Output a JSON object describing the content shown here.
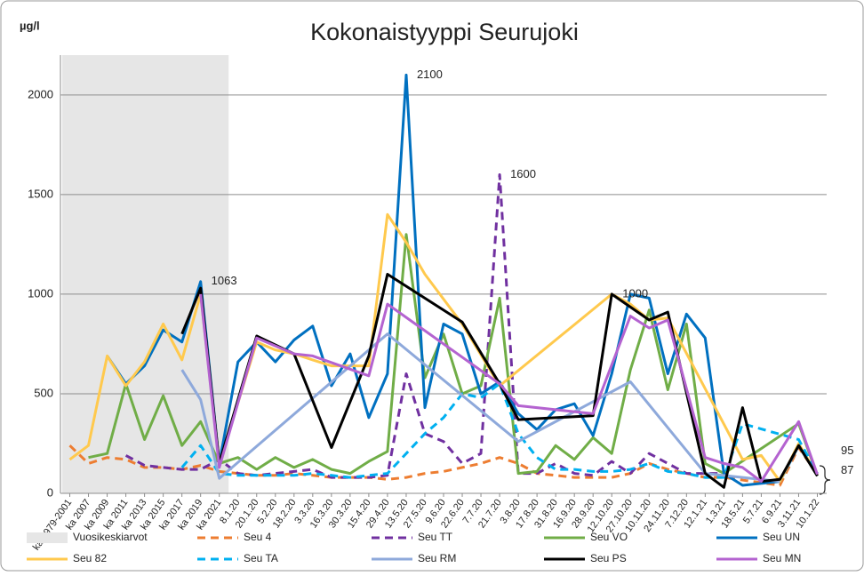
{
  "chart_data": {
    "type": "line",
    "title": "Kokonaistyyppi Seurujoki",
    "y_label": "µg/l",
    "categories": [
      "ka 1979-2001",
      "ka 2007",
      "ka 2009",
      "ka 2011",
      "ka 2013",
      "ka 2015",
      "ka 2017",
      "ka 2019",
      "ka 2021",
      "8.1.20",
      "20.1.20",
      "5.2.20",
      "18.2.20",
      "3.3.20",
      "16.3.20",
      "30.3.20",
      "15.4.20",
      "29.4.20",
      "13.5.20",
      "27.5.20",
      "9.6.20",
      "22.6.20",
      "7.7.20",
      "21.7.20",
      "3.8.20",
      "17.8.20",
      "31.8.20",
      "16.9.20",
      "28.9.20",
      "12.10.20",
      "27.10.20",
      "10.11.20",
      "24.11.20",
      "7.12.20",
      "12.1.21",
      "1.3.21",
      "18.5.21",
      "5.7.21",
      "6.9.21",
      "3.11.21",
      "10.1.22"
    ],
    "ylim": [
      0,
      2200
    ],
    "yticks": [
      0,
      500,
      1000,
      1500,
      2000
    ],
    "grid": true,
    "span_gaps": true,
    "legend": "bottom",
    "shaded_region": {
      "name": "Vuosikeskiarvot",
      "color": "#e6e6e6",
      "from": "ka 1979-2001",
      "to": "ka 2021"
    },
    "series": [
      {
        "name": "Seu 4",
        "color": "#ed7d31",
        "dashed": true,
        "values": [
          240,
          150,
          180,
          170,
          130,
          130,
          120,
          140,
          110,
          100,
          90,
          90,
          100,
          90,
          80,
          80,
          80,
          70,
          80,
          100,
          110,
          130,
          150,
          180,
          150,
          100,
          90,
          80,
          80,
          80,
          100,
          150,
          120,
          100,
          80,
          80,
          null,
          null,
          40,
          230,
          95
        ]
      },
      {
        "name": "Seu TT",
        "color": "#7030a0",
        "dashed": true,
        "values": [
          null,
          null,
          null,
          190,
          140,
          130,
          120,
          120,
          170,
          100,
          90,
          100,
          110,
          120,
          80,
          80,
          80,
          90,
          600,
          300,
          260,
          150,
          200,
          1600,
          100,
          100,
          150,
          100,
          90,
          160,
          100,
          200,
          150,
          100,
          100,
          100,
          null,
          null,
          null,
          null,
          null
        ]
      },
      {
        "name": "Seu VO",
        "color": "#70ad47",
        "dashed": false,
        "values": [
          null,
          180,
          200,
          550,
          270,
          490,
          240,
          360,
          150,
          180,
          120,
          180,
          130,
          170,
          120,
          100,
          160,
          210,
          1300,
          580,
          800,
          500,
          540,
          980,
          100,
          110,
          240,
          170,
          280,
          200,
          620,
          920,
          520,
          850,
          150,
          100,
          null,
          null,
          null,
          350,
          90
        ]
      },
      {
        "name": "Seu UN",
        "color": "#0070c0",
        "dashed": false,
        "values": [
          null,
          null,
          690,
          550,
          640,
          820,
          760,
          1063,
          150,
          660,
          760,
          660,
          770,
          840,
          540,
          700,
          380,
          600,
          2100,
          430,
          850,
          800,
          500,
          560,
          400,
          320,
          420,
          450,
          290,
          600,
          1000,
          980,
          600,
          900,
          780,
          100,
          40,
          null,
          60,
          240,
          90
        ]
      },
      {
        "name": "Seu 82",
        "color": "#ffc94d",
        "dashed": false,
        "values": [
          170,
          240,
          690,
          540,
          660,
          850,
          670,
          1000,
          150,
          null,
          760,
          720,
          700,
          670,
          640,
          640,
          640,
          1400,
          1260,
          1100,
          null,
          850,
          null,
          540,
          null,
          null,
          null,
          null,
          null,
          1000,
          950,
          870,
          880,
          null,
          null,
          null,
          170,
          190,
          60,
          250,
          90
        ]
      },
      {
        "name": "Seu TA",
        "color": "#00b0f0",
        "dashed": true,
        "values": [
          null,
          null,
          null,
          null,
          null,
          null,
          130,
          240,
          100,
          90,
          90,
          90,
          90,
          100,
          90,
          80,
          90,
          100,
          200,
          300,
          380,
          500,
          480,
          550,
          300,
          180,
          120,
          120,
          110,
          110,
          120,
          150,
          110,
          100,
          80,
          80,
          350,
          null,
          null,
          270,
          100
        ]
      },
      {
        "name": "Seu RM",
        "color": "#8ea9db",
        "dashed": false,
        "values": [
          null,
          null,
          null,
          null,
          null,
          null,
          620,
          470,
          75,
          null,
          null,
          null,
          null,
          null,
          null,
          null,
          null,
          800,
          null,
          null,
          null,
          null,
          null,
          null,
          260,
          null,
          null,
          null,
          null,
          null,
          560,
          null,
          null,
          null,
          100,
          null,
          null,
          null,
          60,
          null,
          null
        ]
      },
      {
        "name": "Seu PS",
        "color": "#000000",
        "dashed": false,
        "values": [
          null,
          null,
          null,
          null,
          null,
          null,
          800,
          1030,
          150,
          null,
          790,
          null,
          700,
          null,
          230,
          null,
          690,
          1100,
          null,
          null,
          null,
          860,
          null,
          550,
          370,
          null,
          null,
          null,
          390,
          1000,
          null,
          870,
          910,
          null,
          100,
          30,
          430,
          60,
          70,
          240,
          87
        ]
      },
      {
        "name": "Seu MN",
        "color": "#b463d0",
        "dashed": false,
        "values": [
          null,
          null,
          null,
          null,
          null,
          null,
          null,
          1000,
          130,
          null,
          780,
          null,
          700,
          690,
          null,
          null,
          590,
          950,
          null,
          null,
          null,
          null,
          null,
          550,
          440,
          null,
          null,
          null,
          400,
          null,
          890,
          830,
          870,
          null,
          180,
          150,
          130,
          60,
          null,
          360,
          95
        ]
      }
    ],
    "annotations": [
      {
        "text": "2100",
        "x": "13.5.20",
        "y": 2100
      },
      {
        "text": "1600",
        "x": "21.7.20",
        "y": 1600
      },
      {
        "text": "1063",
        "x": "ka 2019",
        "y": 1063
      },
      {
        "text": "1000",
        "x": "12.10.20",
        "y": 1000
      },
      {
        "text": "95",
        "x": "10.1.22",
        "y": 95
      },
      {
        "text": "87",
        "x": "10.1.22",
        "y": 87
      }
    ]
  }
}
